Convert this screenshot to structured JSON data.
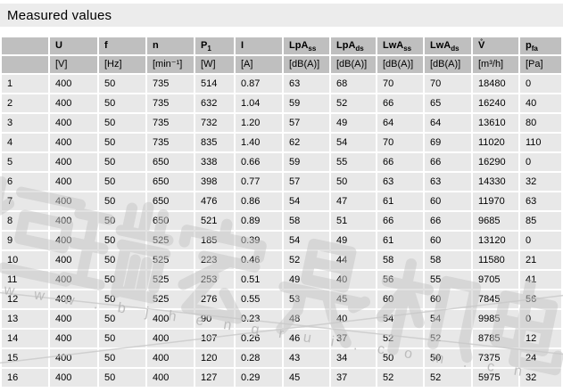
{
  "title": "Measured values",
  "table": {
    "columns": [
      {
        "key": "index",
        "label": "",
        "sub": "",
        "unit": ""
      },
      {
        "key": "U",
        "label": "U",
        "sub": "",
        "unit": "[V]"
      },
      {
        "key": "f",
        "label": "f",
        "sub": "",
        "unit": "[Hz]"
      },
      {
        "key": "n",
        "label": "n",
        "sub": "",
        "unit": "[min⁻¹]"
      },
      {
        "key": "P1",
        "label": "P",
        "sub": "1",
        "unit": "[W]"
      },
      {
        "key": "I",
        "label": "I",
        "sub": "",
        "unit": "[A]"
      },
      {
        "key": "LpAss",
        "label": "LpA",
        "sub": "ss",
        "unit": "[dB(A)]"
      },
      {
        "key": "LpAds",
        "label": "LpA",
        "sub": "ds",
        "unit": "[dB(A)]"
      },
      {
        "key": "LwAss",
        "label": "LwA",
        "sub": "ss",
        "unit": "[dB(A)]"
      },
      {
        "key": "LwAds",
        "label": "LwA",
        "sub": "ds",
        "unit": "[dB(A)]"
      },
      {
        "key": "V",
        "label": "V̊",
        "sub": "",
        "unit": "[m³/h]"
      },
      {
        "key": "pfa",
        "label": "p",
        "sub": "fa",
        "unit": "[Pa]"
      }
    ],
    "rows": [
      [
        "1",
        "400",
        "50",
        "735",
        "514",
        "0.87",
        "63",
        "68",
        "70",
        "70",
        "18480",
        "0"
      ],
      [
        "2",
        "400",
        "50",
        "735",
        "632",
        "1.04",
        "59",
        "52",
        "66",
        "65",
        "16240",
        "40"
      ],
      [
        "3",
        "400",
        "50",
        "735",
        "732",
        "1.20",
        "57",
        "49",
        "64",
        "64",
        "13610",
        "80"
      ],
      [
        "4",
        "400",
        "50",
        "735",
        "835",
        "1.40",
        "62",
        "54",
        "70",
        "69",
        "11020",
        "110"
      ],
      [
        "5",
        "400",
        "50",
        "650",
        "338",
        "0.66",
        "59",
        "55",
        "66",
        "66",
        "16290",
        "0"
      ],
      [
        "6",
        "400",
        "50",
        "650",
        "398",
        "0.77",
        "57",
        "50",
        "63",
        "63",
        "14330",
        "32"
      ],
      [
        "7",
        "400",
        "50",
        "650",
        "476",
        "0.86",
        "54",
        "47",
        "61",
        "60",
        "11970",
        "63"
      ],
      [
        "8",
        "400",
        "50",
        "650",
        "521",
        "0.89",
        "58",
        "51",
        "66",
        "66",
        "9685",
        "85"
      ],
      [
        "9",
        "400",
        "50",
        "525",
        "185",
        "0.39",
        "54",
        "49",
        "61",
        "60",
        "13120",
        "0"
      ],
      [
        "10",
        "400",
        "50",
        "525",
        "223",
        "0.46",
        "52",
        "44",
        "58",
        "58",
        "11580",
        "21"
      ],
      [
        "11",
        "400",
        "50",
        "525",
        "253",
        "0.51",
        "49",
        "40",
        "56",
        "55",
        "9705",
        "41"
      ],
      [
        "12",
        "400",
        "50",
        "525",
        "276",
        "0.55",
        "53",
        "45",
        "60",
        "60",
        "7845",
        "56"
      ],
      [
        "13",
        "400",
        "50",
        "400",
        "90",
        "0.23",
        "48",
        "40",
        "54",
        "54",
        "9985",
        "0"
      ],
      [
        "14",
        "400",
        "50",
        "400",
        "107",
        "0.26",
        "46",
        "37",
        "52",
        "52",
        "8785",
        "12"
      ],
      [
        "15",
        "400",
        "50",
        "400",
        "120",
        "0.28",
        "43",
        "34",
        "50",
        "50",
        "7375",
        "24"
      ],
      [
        "16",
        "400",
        "50",
        "400",
        "127",
        "0.29",
        "45",
        "37",
        "52",
        "52",
        "5975",
        "32"
      ]
    ]
  },
  "watermark": {
    "cjk_text": "恒瑞宏晟机电",
    "url_text": "w w w . b j h e n g r u i . c o m . c n"
  },
  "colors": {
    "title_bg": "#ececec",
    "header_bg": "#bfbfbf",
    "row_bg": "#e8e8e8",
    "watermark": "#c6c6c6"
  }
}
